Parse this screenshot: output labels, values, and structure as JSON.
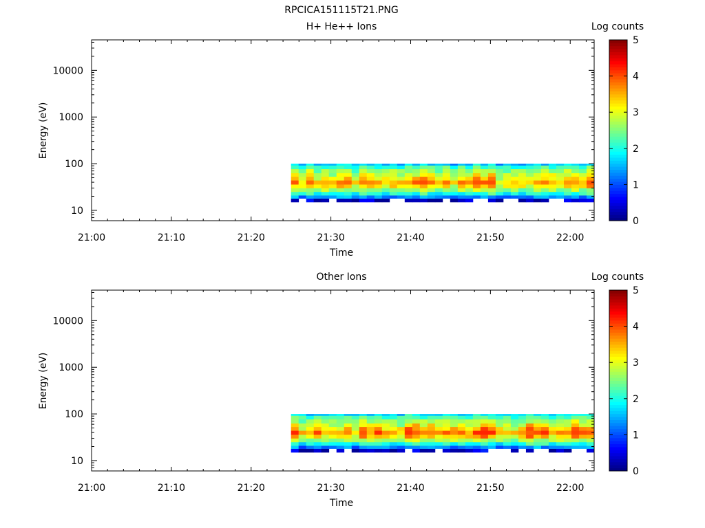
{
  "figure_title": "RPCICA151115T21.PNG",
  "chart_data": [
    {
      "type": "heatmap",
      "title": "H+ He++ Ions",
      "xlabel": "Time",
      "ylabel": "Energy (eV)",
      "x_ticks": [
        "21:00",
        "21:10",
        "21:20",
        "21:30",
        "21:40",
        "21:50",
        "22:00"
      ],
      "xlim": [
        "21:00",
        "22:03"
      ],
      "y_scale": "log",
      "y_ticks": [
        10,
        100,
        1000,
        10000
      ],
      "y_tick_labels": [
        "10",
        "100",
        "1000",
        "10000"
      ],
      "ylim": [
        6,
        45000
      ],
      "data_time_range": [
        "21:25",
        "22:03"
      ],
      "data_energy_range": [
        15,
        100
      ],
      "colorbar": {
        "label": "Log counts",
        "range": [
          0,
          5
        ],
        "ticks": [
          "0",
          "1",
          "2",
          "3",
          "4",
          "5"
        ],
        "colormap": "jet"
      },
      "energy_profile_log_counts": [
        {
          "energy": 15,
          "value": 0.3
        },
        {
          "energy": 18,
          "value": 1.3
        },
        {
          "energy": 21,
          "value": 2.0
        },
        {
          "energy": 25,
          "value": 2.6
        },
        {
          "energy": 30,
          "value": 3.2
        },
        {
          "energy": 36,
          "value": 3.6
        },
        {
          "energy": 44,
          "value": 3.2
        },
        {
          "energy": 53,
          "value": 2.9
        },
        {
          "energy": 63,
          "value": 2.6
        },
        {
          "energy": 77,
          "value": 2.2
        },
        {
          "energy": 92,
          "value": 1.6
        }
      ],
      "peak_log_counts": 4.0
    },
    {
      "type": "heatmap",
      "title": "Other Ions",
      "xlabel": "Time",
      "ylabel": "Energy (eV)",
      "x_ticks": [
        "21:00",
        "21:10",
        "21:20",
        "21:30",
        "21:40",
        "21:50",
        "22:00"
      ],
      "xlim": [
        "21:00",
        "22:03"
      ],
      "y_scale": "log",
      "y_ticks": [
        10,
        100,
        1000,
        10000
      ],
      "y_tick_labels": [
        "10",
        "100",
        "1000",
        "10000"
      ],
      "ylim": [
        6,
        45000
      ],
      "data_time_range": [
        "21:25",
        "22:03"
      ],
      "data_energy_range": [
        15,
        100
      ],
      "colorbar": {
        "label": "Log counts",
        "range": [
          0,
          5
        ],
        "ticks": [
          "0",
          "1",
          "2",
          "3",
          "4",
          "5"
        ],
        "colormap": "jet"
      },
      "energy_profile_log_counts": [
        {
          "energy": 15,
          "value": 0.3
        },
        {
          "energy": 18,
          "value": 1.3
        },
        {
          "energy": 21,
          "value": 2.0
        },
        {
          "energy": 25,
          "value": 2.7
        },
        {
          "energy": 30,
          "value": 3.3
        },
        {
          "energy": 36,
          "value": 3.8
        },
        {
          "energy": 44,
          "value": 3.4
        },
        {
          "energy": 53,
          "value": 3.0
        },
        {
          "energy": 63,
          "value": 2.7
        },
        {
          "energy": 77,
          "value": 2.3
        },
        {
          "energy": 92,
          "value": 1.8
        }
      ],
      "peak_log_counts": 4.2
    }
  ]
}
